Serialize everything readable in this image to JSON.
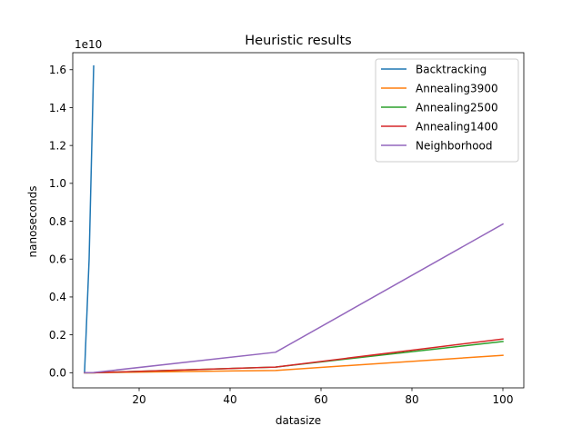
{
  "chart_data": {
    "type": "line",
    "title": "Heuristic results",
    "xlabel": "datasize",
    "ylabel": "nanoseconds",
    "y_offset_label": "1e10",
    "xlim": [
      5.4,
      104.6
    ],
    "ylim": [
      -0.08,
      1.69
    ],
    "y_scale_note": "y values in units of 1e10 nanoseconds",
    "xticks": [
      20,
      40,
      60,
      80,
      100
    ],
    "yticks": [
      0.0,
      0.2,
      0.4,
      0.6,
      0.8,
      1.0,
      1.2,
      1.4,
      1.6
    ],
    "ytick_labels": [
      "0.0",
      "0.2",
      "0.4",
      "0.6",
      "0.8",
      "1.0",
      "1.2",
      "1.4",
      "1.6"
    ],
    "grid": false,
    "legend_position": "top-right",
    "series": [
      {
        "name": "Backtracking",
        "color": "#1f77b4",
        "x": [
          8,
          9,
          10
        ],
        "y": [
          0.005,
          0.6,
          1.62
        ]
      },
      {
        "name": "Annealing3900",
        "color": "#ff7f0e",
        "x": [
          8,
          10,
          50,
          100
        ],
        "y": [
          0.0,
          0.0,
          0.012,
          0.092
        ]
      },
      {
        "name": "Annealing2500",
        "color": "#2ca02c",
        "x": [
          8,
          10,
          50,
          100
        ],
        "y": [
          0.0,
          0.0,
          0.03,
          0.165
        ]
      },
      {
        "name": "Annealing1400",
        "color": "#d62728",
        "x": [
          8,
          10,
          50,
          100
        ],
        "y": [
          0.0,
          0.0,
          0.03,
          0.178
        ]
      },
      {
        "name": "Neighborhood",
        "color": "#9467bd",
        "x": [
          8,
          10,
          50,
          100
        ],
        "y": [
          0.0,
          0.001,
          0.108,
          0.785
        ]
      }
    ]
  }
}
